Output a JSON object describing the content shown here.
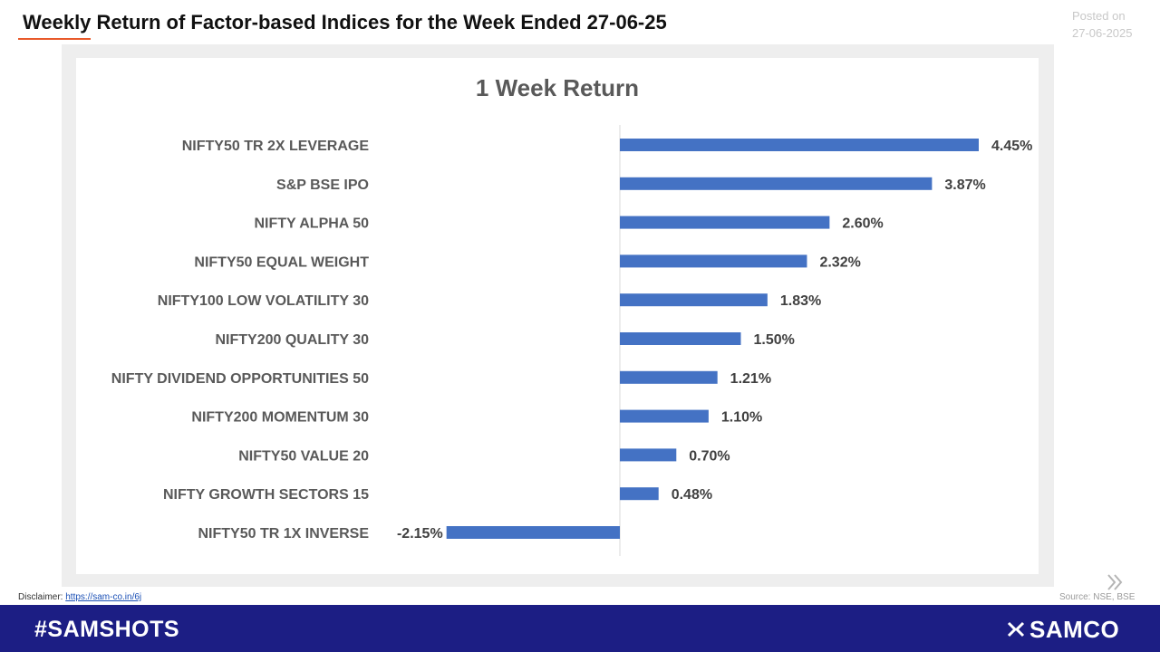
{
  "header": {
    "title": "Weekly Return of Factor-based Indices for the Week Ended 27-06-25",
    "posted_label": "Posted on",
    "posted_date": "27-06-2025"
  },
  "footer": {
    "disclaimer_label": "Disclaimer:",
    "disclaimer_link": "https://sam-co.in/6j",
    "source": "Source: NSE, BSE",
    "hashtag": "#SAMSHOTS",
    "brand": "SAMCO"
  },
  "icons": {
    "next": "double-chevron-right-icon",
    "brand_logo": "samco-logo-icon"
  },
  "colors": {
    "bar": "#4472c4",
    "footer_bg": "#1c1e84",
    "title_underline": "#e8592a"
  },
  "chart_data": {
    "type": "bar",
    "orientation": "horizontal",
    "title": "1 Week Return",
    "categories": [
      "NIFTY50 TR 2X LEVERAGE",
      "S&P BSE IPO",
      "NIFTY ALPHA 50",
      "NIFTY50 EQUAL WEIGHT",
      "NIFTY100 LOW VOLATILITY 30",
      "NIFTY200 QUALITY 30",
      "NIFTY DIVIDEND OPPORTUNITIES 50",
      "NIFTY200 MOMENTUM 30",
      "NIFTY50 VALUE 20",
      "NIFTY GROWTH SECTORS 15",
      "NIFTY50 TR 1X INVERSE"
    ],
    "values": [
      4.45,
      3.87,
      2.6,
      2.32,
      1.83,
      1.5,
      1.21,
      1.1,
      0.7,
      0.48,
      -2.15
    ],
    "data_labels": [
      "4.45%",
      "3.87%",
      "2.60%",
      "2.32%",
      "1.83%",
      "1.50%",
      "1.21%",
      "1.10%",
      "0.70%",
      "0.48%",
      "-2.15%"
    ],
    "xlim": [
      -2.15,
      4.45
    ],
    "grid": false,
    "legend": "none"
  }
}
